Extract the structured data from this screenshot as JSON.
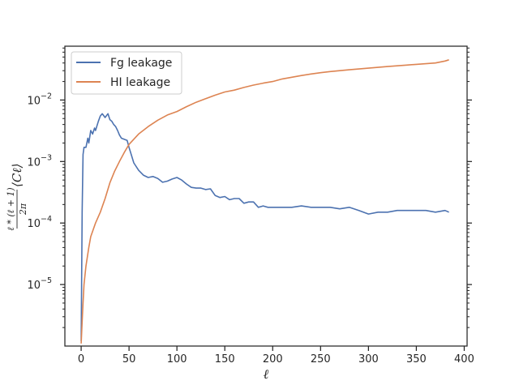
{
  "chart_data": {
    "type": "line",
    "title": "",
    "xlabel": "ℓ",
    "ylabel_parts": {
      "numerator": "ℓ * (ℓ + 1)",
      "denominator": "2π",
      "suffix": "⟨Cℓ⟩"
    },
    "xscale": "linear",
    "yscale": "log",
    "xlim": [
      -17,
      403
    ],
    "ylim": [
      1e-06,
      0.075
    ],
    "x_ticks": [
      0,
      50,
      100,
      150,
      200,
      250,
      300,
      350,
      400
    ],
    "x_tick_labels": [
      "0",
      "50",
      "100",
      "150",
      "200",
      "250",
      "300",
      "350",
      "400"
    ],
    "y_ticks": [
      1e-05,
      0.0001,
      0.001,
      0.01
    ],
    "y_tick_labels": [
      {
        "base": "10",
        "exp": "−5"
      },
      {
        "base": "10",
        "exp": "−4"
      },
      {
        "base": "10",
        "exp": "−3"
      },
      {
        "base": "10",
        "exp": "−2"
      }
    ],
    "grid": false,
    "legend_position": "top-left",
    "series": [
      {
        "name": "Fg leakage",
        "color": "#4c72b0",
        "x": [
          0,
          1,
          2,
          3,
          5,
          7,
          8,
          10,
          12,
          14,
          15,
          18,
          20,
          22,
          25,
          28,
          30,
          32,
          34,
          36,
          38,
          40,
          42,
          45,
          48,
          50,
          55,
          60,
          65,
          70,
          75,
          80,
          85,
          90,
          95,
          100,
          105,
          110,
          115,
          120,
          125,
          130,
          135,
          140,
          145,
          150,
          155,
          160,
          165,
          170,
          175,
          180,
          185,
          190,
          195,
          200,
          210,
          220,
          230,
          240,
          250,
          260,
          270,
          280,
          290,
          300,
          310,
          320,
          330,
          340,
          350,
          360,
          370,
          380,
          384
        ],
        "y": [
          1.2e-06,
          0.00015,
          0.0013,
          0.0017,
          0.0017,
          0.0024,
          0.002,
          0.0032,
          0.0028,
          0.0035,
          0.0032,
          0.0045,
          0.0055,
          0.006,
          0.0052,
          0.006,
          0.0048,
          0.0045,
          0.004,
          0.0037,
          0.0032,
          0.0027,
          0.0024,
          0.0023,
          0.0022,
          0.0017,
          0.00095,
          0.00072,
          0.0006,
          0.00055,
          0.00057,
          0.00053,
          0.00046,
          0.00048,
          0.00052,
          0.00055,
          0.0005,
          0.00043,
          0.00038,
          0.00037,
          0.00037,
          0.00035,
          0.00036,
          0.00028,
          0.00026,
          0.00027,
          0.00024,
          0.00025,
          0.00025,
          0.00021,
          0.00022,
          0.00022,
          0.00018,
          0.00019,
          0.00018,
          0.00018,
          0.00018,
          0.00018,
          0.00019,
          0.00018,
          0.00018,
          0.00018,
          0.00017,
          0.00018,
          0.00016,
          0.00014,
          0.00015,
          0.00015,
          0.00016,
          0.00016,
          0.00016,
          0.00016,
          0.00015,
          0.00016,
          0.00015
        ]
      },
      {
        "name": "HI leakage",
        "color": "#dd8452",
        "x": [
          0,
          1,
          2,
          3,
          5,
          8,
          10,
          15,
          20,
          25,
          30,
          35,
          40,
          45,
          50,
          60,
          70,
          80,
          90,
          100,
          110,
          120,
          130,
          140,
          150,
          160,
          170,
          180,
          190,
          200,
          210,
          220,
          230,
          240,
          250,
          260,
          270,
          280,
          290,
          300,
          310,
          320,
          330,
          340,
          350,
          360,
          370,
          380,
          384
        ],
        "y": [
          1.1e-06,
          2.5e-06,
          5e-06,
          1e-05,
          2e-05,
          4e-05,
          6e-05,
          0.0001,
          0.00015,
          0.00025,
          0.00045,
          0.0007,
          0.001,
          0.0014,
          0.0019,
          0.0028,
          0.0037,
          0.0047,
          0.0057,
          0.0065,
          0.0078,
          0.0092,
          0.0105,
          0.012,
          0.0135,
          0.0145,
          0.016,
          0.0175,
          0.0188,
          0.02,
          0.022,
          0.0235,
          0.025,
          0.0265,
          0.0278,
          0.029,
          0.03,
          0.031,
          0.032,
          0.033,
          0.034,
          0.035,
          0.036,
          0.037,
          0.038,
          0.039,
          0.04,
          0.043,
          0.045
        ]
      }
    ]
  }
}
